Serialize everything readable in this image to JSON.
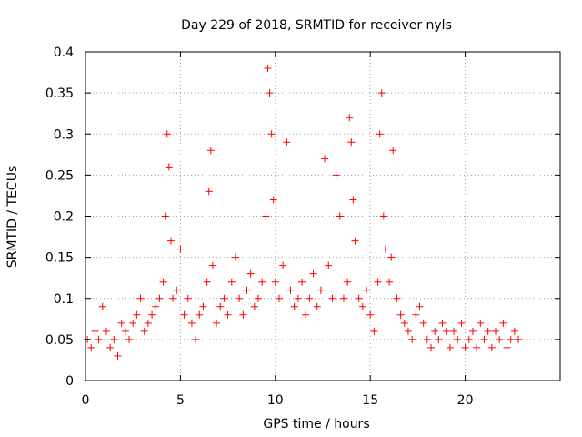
{
  "chart_data": {
    "type": "scatter",
    "title": "Day 229 of 2018, SRMTID for receiver nyls",
    "xlabel": "GPS time / hours",
    "ylabel": "SRMTID / TECUs",
    "xlim": [
      0,
      25
    ],
    "ylim": [
      0,
      0.4
    ],
    "xticks": [
      {
        "value": 0,
        "label": "0"
      },
      {
        "value": 5,
        "label": "5"
      },
      {
        "value": 10,
        "label": "10"
      },
      {
        "value": 15,
        "label": "15"
      },
      {
        "value": 20,
        "label": "20"
      }
    ],
    "yticks": [
      {
        "value": 0,
        "label": "0"
      },
      {
        "value": 0.05,
        "label": "0.05"
      },
      {
        "value": 0.1,
        "label": "0.1"
      },
      {
        "value": 0.15,
        "label": "0.15"
      },
      {
        "value": 0.2,
        "label": "0.2"
      },
      {
        "value": 0.25,
        "label": "0.25"
      },
      {
        "value": 0.3,
        "label": "0.3"
      },
      {
        "value": 0.35,
        "label": "0.35"
      },
      {
        "value": 0.4,
        "label": "0.4"
      }
    ],
    "grid": true,
    "marker": "+",
    "color": "#ff0000",
    "series": [
      {
        "name": "SRMTID",
        "x": [
          0.1,
          0.3,
          0.5,
          0.7,
          0.9,
          1.1,
          1.3,
          1.5,
          1.7,
          1.9,
          2.1,
          2.3,
          2.5,
          2.7,
          2.9,
          3.1,
          3.3,
          3.5,
          3.7,
          3.9,
          4.1,
          4.2,
          4.3,
          4.4,
          4.5,
          4.6,
          4.8,
          5.0,
          5.2,
          5.4,
          5.6,
          5.8,
          6.0,
          6.2,
          6.4,
          6.5,
          6.6,
          6.7,
          6.9,
          7.1,
          7.3,
          7.5,
          7.7,
          7.9,
          8.1,
          8.3,
          8.5,
          8.7,
          8.9,
          9.1,
          9.3,
          9.5,
          9.6,
          9.7,
          9.8,
          9.9,
          10.0,
          10.2,
          10.4,
          10.6,
          10.8,
          11.0,
          11.2,
          11.4,
          11.6,
          11.8,
          12.0,
          12.2,
          12.4,
          12.6,
          12.8,
          13.0,
          13.2,
          13.4,
          13.6,
          13.8,
          13.9,
          14.0,
          14.1,
          14.2,
          14.4,
          14.6,
          14.8,
          15.0,
          15.2,
          15.4,
          15.5,
          15.6,
          15.7,
          15.8,
          16.0,
          16.1,
          16.2,
          16.4,
          16.6,
          16.8,
          17.0,
          17.2,
          17.4,
          17.6,
          17.8,
          18.0,
          18.2,
          18.4,
          18.6,
          18.8,
          19.0,
          19.2,
          19.4,
          19.6,
          19.8,
          20.0,
          20.2,
          20.4,
          20.6,
          20.8,
          21.0,
          21.2,
          21.4,
          21.6,
          21.8,
          22.0,
          22.2,
          22.4,
          22.6,
          22.8
        ],
        "y": [
          0.05,
          0.04,
          0.06,
          0.05,
          0.09,
          0.06,
          0.04,
          0.05,
          0.03,
          0.07,
          0.06,
          0.05,
          0.07,
          0.08,
          0.1,
          0.06,
          0.07,
          0.08,
          0.09,
          0.1,
          0.12,
          0.2,
          0.3,
          0.26,
          0.17,
          0.1,
          0.11,
          0.16,
          0.08,
          0.1,
          0.07,
          0.05,
          0.08,
          0.09,
          0.12,
          0.23,
          0.28,
          0.14,
          0.07,
          0.09,
          0.1,
          0.08,
          0.12,
          0.15,
          0.1,
          0.08,
          0.11,
          0.13,
          0.09,
          0.1,
          0.12,
          0.2,
          0.38,
          0.35,
          0.3,
          0.22,
          0.12,
          0.1,
          0.14,
          0.29,
          0.11,
          0.09,
          0.1,
          0.12,
          0.08,
          0.1,
          0.13,
          0.09,
          0.11,
          0.27,
          0.14,
          0.1,
          0.25,
          0.2,
          0.1,
          0.12,
          0.32,
          0.29,
          0.22,
          0.17,
          0.1,
          0.09,
          0.11,
          0.08,
          0.06,
          0.12,
          0.3,
          0.35,
          0.2,
          0.16,
          0.12,
          0.15,
          0.28,
          0.1,
          0.08,
          0.07,
          0.06,
          0.05,
          0.08,
          0.09,
          0.07,
          0.05,
          0.04,
          0.06,
          0.05,
          0.07,
          0.06,
          0.04,
          0.06,
          0.05,
          0.07,
          0.04,
          0.05,
          0.06,
          0.04,
          0.07,
          0.05,
          0.06,
          0.04,
          0.06,
          0.05,
          0.07,
          0.04,
          0.05,
          0.06,
          0.05
        ]
      }
    ]
  }
}
